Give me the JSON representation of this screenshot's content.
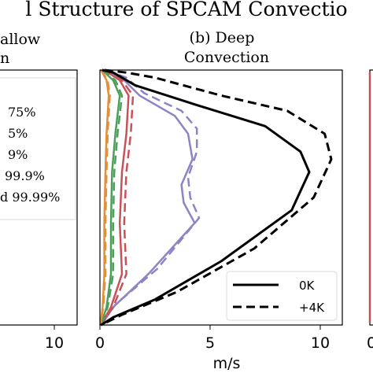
{
  "figure": {
    "title": "l Structure of SPCAM Convectio",
    "x_unit_label": "m/s"
  },
  "panels": {
    "left": {
      "title_line1": "allow",
      "title_line2": "n",
      "x_tick_label": "10",
      "legend_entries": [
        "75%",
        "5%",
        "9%",
        "99.9%",
        "d 99.99%"
      ]
    },
    "middle": {
      "title_line1": "(b) Deep",
      "title_line2": "Convection",
      "legend_entries": [
        {
          "label": "0K",
          "style": "solid"
        },
        {
          "label": "+4K",
          "style": "dashed"
        }
      ]
    },
    "right": {
      "x_tick_label": "0"
    }
  },
  "chart_data": {
    "type": "line",
    "title": "(b) Deep Convection",
    "xlabel": "m/s",
    "ylabel": "",
    "xlim": [
      0,
      11
    ],
    "ylim": [
      0,
      1
    ],
    "x_ticks": [
      {
        "value": 0,
        "label": "0"
      },
      {
        "value": 5,
        "label": "5"
      },
      {
        "value": 10,
        "label": "10"
      }
    ],
    "colors": {
      "black": "#000000",
      "purple": "#8c84c4",
      "red": "#c8525a",
      "green": "#4f9f5c",
      "orange": "#e0903a"
    },
    "series": [
      {
        "name": "0K",
        "color_key": "black",
        "dash": false,
        "points": [
          [
            0.1,
            1
          ],
          [
            0.6,
            0.99
          ],
          [
            1.6,
            0.94
          ],
          [
            4.5,
            0.86
          ],
          [
            7.5,
            0.78
          ],
          [
            9.1,
            0.68
          ],
          [
            9.5,
            0.6
          ],
          [
            8.7,
            0.45
          ],
          [
            5.5,
            0.25
          ],
          [
            2.5,
            0.1
          ],
          [
            0.6,
            0.03
          ],
          [
            0.05,
            0
          ]
        ]
      },
      {
        "name": "+4K",
        "color_key": "black",
        "dash": true,
        "points": [
          [
            0.2,
            1
          ],
          [
            1.2,
            0.99
          ],
          [
            2.5,
            0.97
          ],
          [
            5.5,
            0.9
          ],
          [
            8.5,
            0.84
          ],
          [
            10.2,
            0.75
          ],
          [
            10.5,
            0.65
          ],
          [
            9.7,
            0.5
          ],
          [
            7,
            0.3
          ],
          [
            3.5,
            0.13
          ],
          [
            1,
            0.04
          ],
          [
            0.05,
            0
          ]
        ]
      },
      {
        "color_key": "purple",
        "dash": false,
        "points": [
          [
            0.3,
            1
          ],
          [
            1.1,
            0.96
          ],
          [
            1.8,
            0.9
          ],
          [
            3.4,
            0.82
          ],
          [
            4,
            0.75
          ],
          [
            4.2,
            0.65
          ],
          [
            3.7,
            0.55
          ],
          [
            3.8,
            0.48
          ],
          [
            4.3,
            0.4
          ],
          [
            2.2,
            0.2
          ],
          [
            0.6,
            0.07
          ],
          [
            0.05,
            0
          ]
        ]
      },
      {
        "color_key": "purple",
        "dash": true,
        "points": [
          [
            0.3,
            1
          ],
          [
            1.2,
            0.97
          ],
          [
            2,
            0.91
          ],
          [
            3.7,
            0.84
          ],
          [
            4.4,
            0.77
          ],
          [
            4.4,
            0.68
          ],
          [
            4,
            0.58
          ],
          [
            4.1,
            0.5
          ],
          [
            4.5,
            0.42
          ],
          [
            2.6,
            0.22
          ],
          [
            0.7,
            0.08
          ],
          [
            0.05,
            0
          ]
        ]
      },
      {
        "color_key": "red",
        "dash": false,
        "points": [
          [
            0.2,
            1
          ],
          [
            0.9,
            0.96
          ],
          [
            1.3,
            0.9
          ],
          [
            1.2,
            0.75
          ],
          [
            1,
            0.6
          ],
          [
            0.9,
            0.4
          ],
          [
            1,
            0.2
          ],
          [
            0.5,
            0.07
          ],
          [
            0.05,
            0
          ]
        ]
      },
      {
        "color_key": "red",
        "dash": true,
        "points": [
          [
            0.2,
            1
          ],
          [
            1,
            0.96
          ],
          [
            1.5,
            0.9
          ],
          [
            1.4,
            0.75
          ],
          [
            1.2,
            0.6
          ],
          [
            1.1,
            0.4
          ],
          [
            1.2,
            0.2
          ],
          [
            0.6,
            0.07
          ],
          [
            0.05,
            0
          ]
        ]
      },
      {
        "color_key": "green",
        "dash": false,
        "points": [
          [
            0.1,
            1
          ],
          [
            0.6,
            0.96
          ],
          [
            0.9,
            0.9
          ],
          [
            0.7,
            0.75
          ],
          [
            0.55,
            0.6
          ],
          [
            0.5,
            0.4
          ],
          [
            0.5,
            0.2
          ],
          [
            0.3,
            0.07
          ],
          [
            0.05,
            0
          ]
        ]
      },
      {
        "color_key": "green",
        "dash": true,
        "points": [
          [
            0.1,
            1
          ],
          [
            0.7,
            0.96
          ],
          [
            1,
            0.9
          ],
          [
            0.8,
            0.75
          ],
          [
            0.65,
            0.6
          ],
          [
            0.6,
            0.4
          ],
          [
            0.6,
            0.2
          ],
          [
            0.35,
            0.07
          ],
          [
            0.05,
            0
          ]
        ]
      },
      {
        "color_key": "orange",
        "dash": false,
        "points": [
          [
            0.05,
            1
          ],
          [
            0.3,
            0.96
          ],
          [
            0.4,
            0.9
          ],
          [
            0.3,
            0.75
          ],
          [
            0.25,
            0.6
          ],
          [
            0.2,
            0.4
          ],
          [
            0.2,
            0.2
          ],
          [
            0.12,
            0.07
          ],
          [
            0.02,
            0
          ]
        ]
      },
      {
        "color_key": "orange",
        "dash": true,
        "points": [
          [
            0.05,
            1
          ],
          [
            0.35,
            0.96
          ],
          [
            0.45,
            0.9
          ],
          [
            0.35,
            0.75
          ],
          [
            0.3,
            0.6
          ],
          [
            0.25,
            0.4
          ],
          [
            0.25,
            0.2
          ],
          [
            0.15,
            0.07
          ],
          [
            0.02,
            0
          ]
        ]
      }
    ]
  }
}
